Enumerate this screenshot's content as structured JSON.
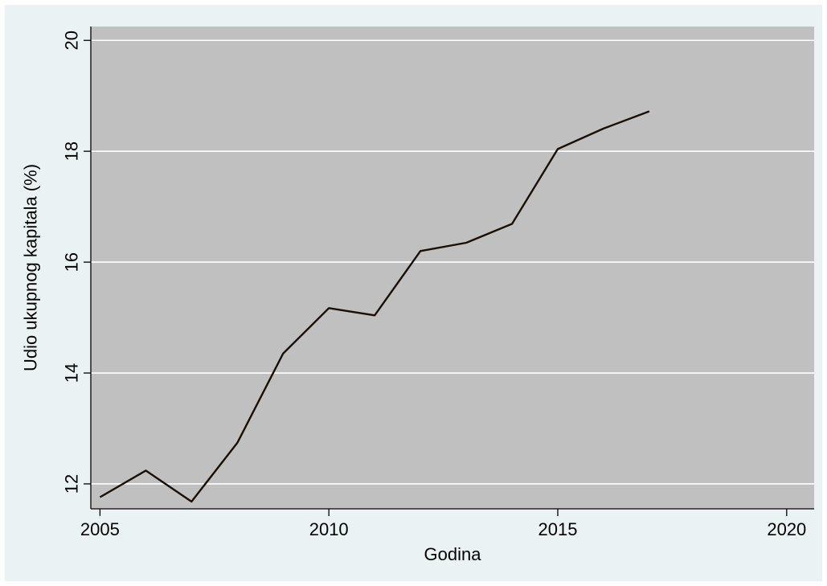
{
  "chart_data": {
    "type": "line",
    "title": "",
    "xlabel": "Godina",
    "ylabel": "Udio ukupnog kapitala (%)",
    "xlim": [
      2004.8,
      2020.6
    ],
    "ylim": [
      11.55,
      20.25
    ],
    "x_ticks": [
      2005,
      2010,
      2015,
      2020
    ],
    "y_ticks": [
      12,
      14,
      16,
      18,
      20
    ],
    "grid": {
      "horizontal": true,
      "vertical": false
    },
    "legend": "none",
    "colors": {
      "frame_background": "#eaf2f3",
      "plot_background": "#c0c0c0",
      "gridline": "#ffffff",
      "line": "#1a0f05"
    },
    "series": [
      {
        "x": [
          2005,
          2006,
          2007,
          2008,
          2009,
          2010,
          2011,
          2012,
          2013,
          2014,
          2015,
          2016,
          2017
        ],
        "values": [
          11.76,
          12.24,
          11.68,
          12.74,
          14.35,
          15.17,
          15.04,
          16.2,
          16.35,
          16.69,
          18.04,
          18.41,
          18.72
        ]
      }
    ]
  }
}
